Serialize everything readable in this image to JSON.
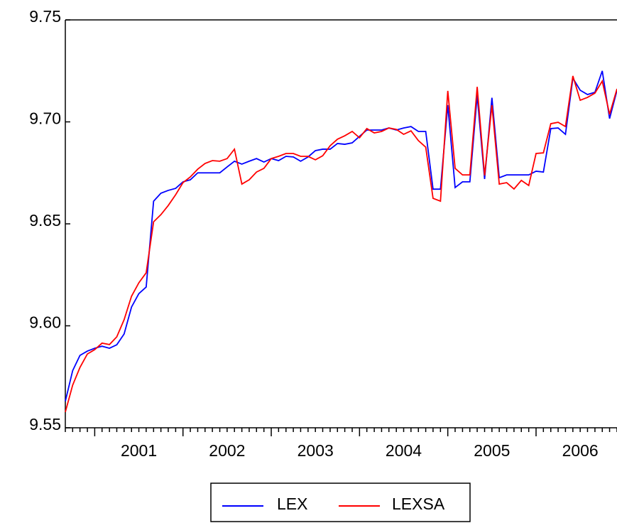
{
  "chart_data": {
    "type": "line",
    "x": [
      2000.667,
      2000.75,
      2000.833,
      2000.917,
      2001.0,
      2001.083,
      2001.167,
      2001.25,
      2001.333,
      2001.417,
      2001.5,
      2001.583,
      2001.667,
      2001.75,
      2001.833,
      2001.917,
      2002.0,
      2002.083,
      2002.167,
      2002.25,
      2002.333,
      2002.417,
      2002.5,
      2002.583,
      2002.667,
      2002.75,
      2002.833,
      2002.917,
      2003.0,
      2003.083,
      2003.167,
      2003.25,
      2003.333,
      2003.417,
      2003.5,
      2003.583,
      2003.667,
      2003.75,
      2003.833,
      2003.917,
      2004.0,
      2004.083,
      2004.167,
      2004.25,
      2004.333,
      2004.417,
      2004.5,
      2004.583,
      2004.667,
      2004.75,
      2004.833,
      2004.917,
      2005.0,
      2005.083,
      2005.167,
      2005.25,
      2005.333,
      2005.417,
      2005.5,
      2005.583,
      2005.667,
      2005.75,
      2005.833,
      2005.917,
      2006.0,
      2006.083,
      2006.167,
      2006.25,
      2006.333,
      2006.417,
      2006.5,
      2006.583,
      2006.667,
      2006.75,
      2006.833,
      2006.917
    ],
    "series": [
      {
        "name": "LEX",
        "color": "#0000ff",
        "values": [
          9.563,
          9.578,
          9.5855,
          9.5876,
          9.589,
          9.59,
          9.589,
          9.5907,
          9.596,
          9.6092,
          9.6158,
          9.619,
          9.6611,
          9.665,
          9.6664,
          9.6674,
          9.6706,
          9.6716,
          9.675,
          9.675,
          9.675,
          9.675,
          9.6779,
          9.6807,
          9.6793,
          9.6807,
          9.682,
          9.6803,
          9.682,
          9.681,
          9.6831,
          9.6828,
          9.6807,
          9.6828,
          9.6859,
          9.6866,
          9.6866,
          9.6894,
          9.689,
          9.6897,
          9.6929,
          9.696,
          9.696,
          9.696,
          9.697,
          9.696,
          9.697,
          9.6977,
          9.6953,
          9.6953,
          9.667,
          9.667,
          9.7082,
          9.6678,
          9.6706,
          9.6706,
          9.713,
          9.672,
          9.7118,
          9.6726,
          9.674,
          9.674,
          9.674,
          9.674,
          9.6758,
          9.6754,
          9.6967,
          9.697,
          9.6939,
          9.7214,
          9.7155,
          9.7134,
          9.7145,
          9.725,
          9.7016,
          9.7155
        ]
      },
      {
        "name": "LEXSA",
        "color": "#ff0000",
        "values": [
          9.5577,
          9.5709,
          9.5796,
          9.5862,
          9.5883,
          9.5915,
          9.5908,
          9.5946,
          9.603,
          9.6145,
          9.6211,
          9.626,
          9.651,
          9.6545,
          9.659,
          9.6643,
          9.6702,
          9.673,
          9.6768,
          9.6796,
          9.681,
          9.6807,
          9.682,
          9.6866,
          9.6695,
          9.6716,
          9.6754,
          9.6772,
          9.682,
          9.6831,
          9.6845,
          9.6845,
          9.6831,
          9.6831,
          9.6814,
          9.6834,
          9.6883,
          9.6915,
          9.6932,
          9.6953,
          9.6922,
          9.6967,
          9.6946,
          9.6953,
          9.697,
          9.6963,
          9.6939,
          9.6956,
          9.6908,
          9.6876,
          9.6625,
          9.6611,
          9.7152,
          9.6772,
          9.674,
          9.674,
          9.7172,
          9.6737,
          9.7082,
          9.6695,
          9.6702,
          9.6671,
          9.6713,
          9.6688,
          9.6845,
          9.6848,
          9.6991,
          9.6998,
          9.6977,
          9.7225,
          9.7106,
          9.712,
          9.7141,
          9.72,
          9.7037,
          9.7162
        ]
      }
    ],
    "xlim": [
      2000.667,
      2006.917
    ],
    "xticks": [
      {
        "value": 2001.5,
        "label": "2001"
      },
      {
        "value": 2002.5,
        "label": "2002"
      },
      {
        "value": 2003.5,
        "label": "2003"
      },
      {
        "value": 2004.5,
        "label": "2004"
      },
      {
        "value": 2005.5,
        "label": "2005"
      },
      {
        "value": 2006.5,
        "label": "2006"
      }
    ],
    "ylim": [
      9.55,
      9.75
    ],
    "yticks": [
      {
        "value": 9.55,
        "label": "9.55"
      },
      {
        "value": 9.6,
        "label": "9.60"
      },
      {
        "value": 9.65,
        "label": "9.65"
      },
      {
        "value": 9.7,
        "label": "9.70"
      },
      {
        "value": 9.75,
        "label": "9.75"
      }
    ],
    "legend": "bottom"
  }
}
